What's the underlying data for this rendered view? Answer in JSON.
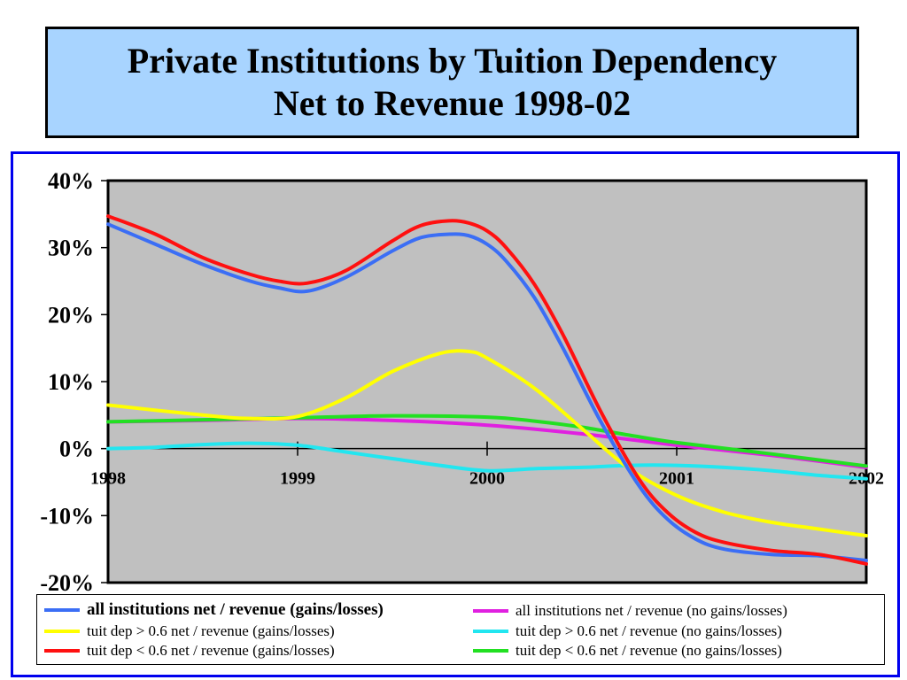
{
  "title": {
    "line1": "Private Institutions by Tuition Dependency",
    "line2": "Net to Revenue 1998-02"
  },
  "colors": {
    "title_background": "#a8d4ff",
    "plot_background": "#c0c0c0",
    "frame_border": "#0000ee"
  },
  "chart_data": {
    "type": "line",
    "x_tick_labels": [
      "1998",
      "1999",
      "2000",
      "2001",
      "2002"
    ],
    "y_tick_labels": [
      "40%",
      "30%",
      "20%",
      "10%",
      "0%",
      "-10%",
      "-20%"
    ],
    "xlim": [
      1998,
      2002
    ],
    "ylim": [
      -20,
      40
    ],
    "grid": false,
    "legend_position": "bottom",
    "series": [
      {
        "name": "all institutions net / revenue (gains/losses)",
        "color": "#3b6ef5",
        "bold_label": true,
        "x": [
          1998,
          1998.25,
          1998.5,
          1998.75,
          1998.9,
          1999.05,
          1999.25,
          1999.5,
          1999.65,
          1999.8,
          1999.9,
          2000,
          2000.1,
          2000.25,
          2000.4,
          2000.6,
          2000.8,
          2000.95,
          2001.1,
          2001.25,
          2001.5,
          2001.75,
          2002
        ],
        "y": [
          33.5,
          30.5,
          27.5,
          25,
          24,
          23.5,
          25.5,
          29.5,
          31.5,
          32,
          31.8,
          30.5,
          28,
          22.5,
          15,
          4,
          -5.5,
          -10.5,
          -13.5,
          -15,
          -15.8,
          -16,
          -16.7
        ]
      },
      {
        "name": "all institutions net / revenue (no gains/losses)",
        "color": "#e020e0",
        "bold_label": false,
        "x": [
          1998,
          1998.5,
          1999,
          1999.5,
          2000,
          2000.5,
          2001,
          2001.5,
          2002
        ],
        "y": [
          4,
          4.2,
          4.5,
          4.2,
          3.5,
          2.2,
          0.5,
          -1,
          -2.8
        ]
      },
      {
        "name": "tuit dep > 0.6 net / revenue (gains/losses)",
        "color": "#ffff00",
        "bold_label": false,
        "x": [
          1998,
          1998.5,
          1998.75,
          1999,
          1999.25,
          1999.5,
          1999.75,
          1999.9,
          2000,
          2000.25,
          2000.5,
          2000.75,
          2001,
          2001.25,
          2001.5,
          2001.75,
          2002
        ],
        "y": [
          6.5,
          5,
          4.5,
          4.8,
          7.5,
          11.5,
          14.2,
          14.5,
          13.5,
          9,
          3,
          -3,
          -7,
          -9.5,
          -11,
          -12,
          -13
        ]
      },
      {
        "name": "tuit dep > 0.6 net / revenue (no gains/losses)",
        "color": "#22e6f0",
        "bold_label": false,
        "x": [
          1998,
          1998.25,
          1998.5,
          1998.75,
          1999,
          1999.25,
          1999.5,
          1999.75,
          2000,
          2000.25,
          2000.5,
          2000.75,
          2001,
          2001.25,
          2001.5,
          2001.75,
          2002
        ],
        "y": [
          0,
          0.2,
          0.6,
          0.8,
          0.5,
          -0.5,
          -1.5,
          -2.5,
          -3.3,
          -3,
          -2.8,
          -2.5,
          -2.5,
          -2.8,
          -3.3,
          -4,
          -4.5
        ]
      },
      {
        "name": "tuit dep < 0.6 net / revenue (gains/losses)",
        "color": "#ff1010",
        "bold_label": false,
        "x": [
          1998,
          1998.25,
          1998.5,
          1998.75,
          1998.9,
          1999.05,
          1999.25,
          1999.5,
          1999.65,
          1999.8,
          1999.9,
          2000,
          2000.1,
          2000.25,
          2000.4,
          2000.6,
          2000.8,
          2000.95,
          2001.1,
          2001.25,
          2001.5,
          2001.75,
          2002
        ],
        "y": [
          34.7,
          32,
          28.5,
          26,
          25,
          24.7,
          26.5,
          31,
          33.3,
          34,
          33.7,
          32.5,
          30,
          24.5,
          17,
          5.5,
          -4.5,
          -9.5,
          -12.5,
          -14,
          -15.2,
          -15.8,
          -17.2
        ]
      },
      {
        "name": "tuit dep < 0.6 net / revenue (no gains/losses)",
        "color": "#22e022",
        "bold_label": false,
        "x": [
          1998,
          1998.5,
          1999,
          1999.5,
          2000,
          2000.25,
          2000.5,
          2000.75,
          2001,
          2001.5,
          2002
        ],
        "y": [
          4,
          4.3,
          4.6,
          4.9,
          4.7,
          4.1,
          3.2,
          2,
          0.9,
          -0.8,
          -2.6
        ]
      }
    ]
  }
}
